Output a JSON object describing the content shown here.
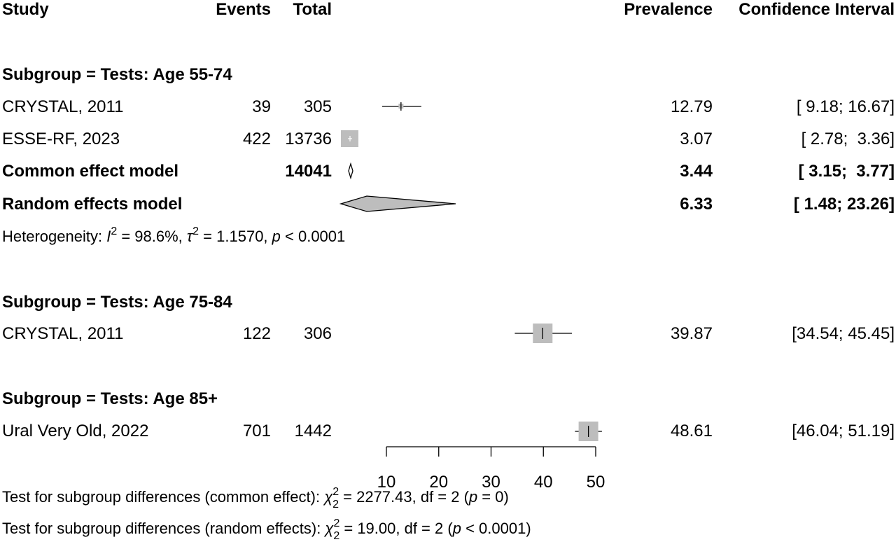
{
  "headers": {
    "study": "Study",
    "events": "Events",
    "total": "Total",
    "prevalence": "Prevalence",
    "ci": "Confidence Interval"
  },
  "chart_data": {
    "type": "forest",
    "x_axis": {
      "min": 10,
      "max": 50,
      "ticks": [
        10,
        20,
        30,
        40,
        50
      ]
    },
    "subgroups": [
      {
        "label": "Subgroup = Tests: Age 55-74",
        "studies": [
          {
            "study": "CRYSTAL, 2011",
            "events": "39",
            "total": "305",
            "prevalence": 12.79,
            "lower": 9.18,
            "upper": 16.67,
            "prevalence_text": "12.79",
            "ci_text": "[ 9.18; 16.67]",
            "weight": 0.1
          },
          {
            "study": "ESSE-RF, 2023",
            "events": "422",
            "total": "13736",
            "prevalence": 3.07,
            "lower": 2.78,
            "upper": 3.36,
            "prevalence_text": "3.07",
            "ci_text": "[ 2.78;  3.36]",
            "weight": 0.9
          }
        ],
        "common": {
          "label": "Common effect model",
          "total": "14041",
          "prevalence": 3.44,
          "lower": 3.15,
          "upper": 3.77,
          "prevalence_text": "3.44",
          "ci_text": "[ 3.15;  3.77]"
        },
        "random": {
          "label": "Random effects model",
          "prevalence": 6.33,
          "lower": 1.48,
          "upper": 23.26,
          "prevalence_text": "6.33",
          "ci_text": "[ 1.48; 23.26]"
        },
        "heterogeneity": {
          "prefix": "Heterogeneity: ",
          "i_symbol": "I",
          "i_sup": "2",
          "i_value": " = 98.6%, ",
          "tau_symbol": "τ",
          "tau_sup": "2",
          "tau_value": " = 1.1570, ",
          "p_symbol": "p",
          "p_value": " < 0.0001"
        }
      },
      {
        "label": "Subgroup = Tests: Age 75-84",
        "studies": [
          {
            "study": "CRYSTAL, 2011",
            "events": "122",
            "total": "306",
            "prevalence": 39.87,
            "lower": 34.54,
            "upper": 45.45,
            "prevalence_text": "39.87",
            "ci_text": "[34.54; 45.45]",
            "weight": 1.0
          }
        ]
      },
      {
        "label": "Subgroup = Tests: Age 85+",
        "studies": [
          {
            "study": "Ural Very Old, 2022",
            "events": "701",
            "total": "1442",
            "prevalence": 48.61,
            "lower": 46.04,
            "upper": 51.19,
            "prevalence_text": "48.61",
            "ci_text": "[46.04; 51.19]",
            "weight": 1.0
          }
        ]
      }
    ],
    "tests": [
      {
        "prefix": "Test for subgroup differences (common effect): ",
        "chi_symbol": "χ",
        "chi_sup": "2",
        "chi_sub": "2",
        "rest1": " = 2277.43, df = 2 (",
        "p_symbol": "p",
        "rest2": " = 0)"
      },
      {
        "prefix": "Test for subgroup differences (random effects): ",
        "chi_symbol": "χ",
        "chi_sup": "2",
        "chi_sub": "2",
        "rest1": " = 19.00, df = 2 (",
        "p_symbol": "p",
        "rest2": " < 0.0001)"
      }
    ]
  }
}
